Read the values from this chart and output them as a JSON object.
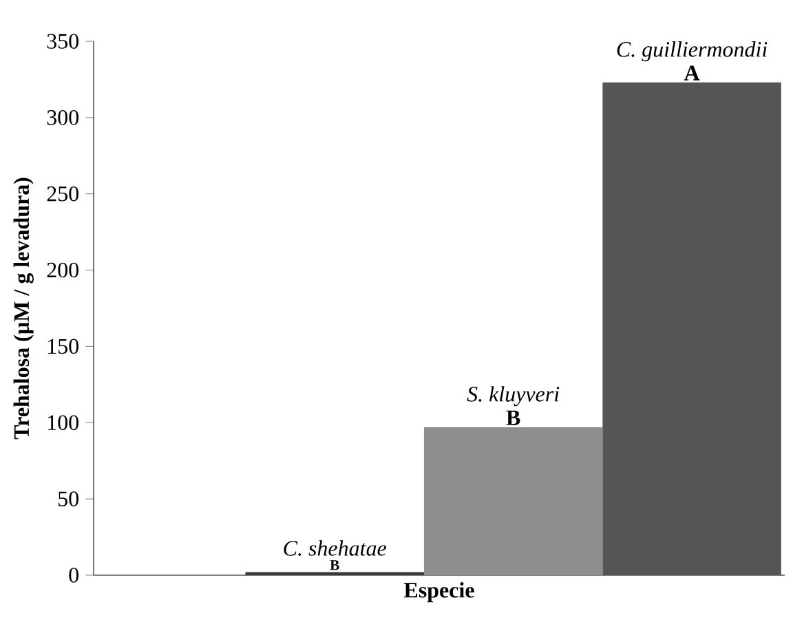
{
  "chart_data": {
    "type": "bar",
    "xlabel": "Especie",
    "ylabel": "Trehalosa (µM / g levadura)",
    "categories": [
      "C. shehatae",
      "S. kluyveri",
      "C. guilliermondii"
    ],
    "values": [
      2,
      97,
      323
    ],
    "colors": [
      "#3a3a3a",
      "#8e8e8e",
      "#555555"
    ],
    "ylim": [
      0,
      350
    ],
    "yticks": [
      0,
      50,
      100,
      150,
      200,
      250,
      300,
      350
    ],
    "grid": false,
    "annotations": [
      {
        "text": "B",
        "x": "C. shehatae",
        "y": 2
      },
      {
        "text": "B",
        "x": "S. kluyveri",
        "y": 97
      },
      {
        "text": "A",
        "x": "C. guilliermondii",
        "y": 323
      }
    ]
  }
}
